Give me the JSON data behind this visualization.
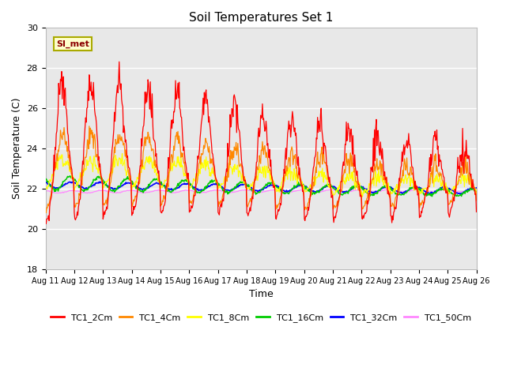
{
  "title": "Soil Temperatures Set 1",
  "xlabel": "Time",
  "ylabel": "Soil Temperature (C)",
  "ylim": [
    18,
    30
  ],
  "annotation": "SI_met",
  "background_color": "#e8e8e8",
  "series_colors": {
    "TC1_2Cm": "#ff0000",
    "TC1_4Cm": "#ff8800",
    "TC1_8Cm": "#ffff00",
    "TC1_16Cm": "#00cc00",
    "TC1_32Cm": "#0000ff",
    "TC1_50Cm": "#ff88ff"
  },
  "xtick_labels": [
    "Aug 11",
    "Aug 12",
    "Aug 13",
    "Aug 14",
    "Aug 15",
    "Aug 16",
    "Aug 17",
    "Aug 18",
    "Aug 19",
    "Aug 20",
    "Aug 21",
    "Aug 22",
    "Aug 23",
    "Aug 24",
    "Aug 25",
    "Aug 26"
  ],
  "ytick_labels": [
    18,
    20,
    22,
    24,
    26,
    28,
    30
  ]
}
